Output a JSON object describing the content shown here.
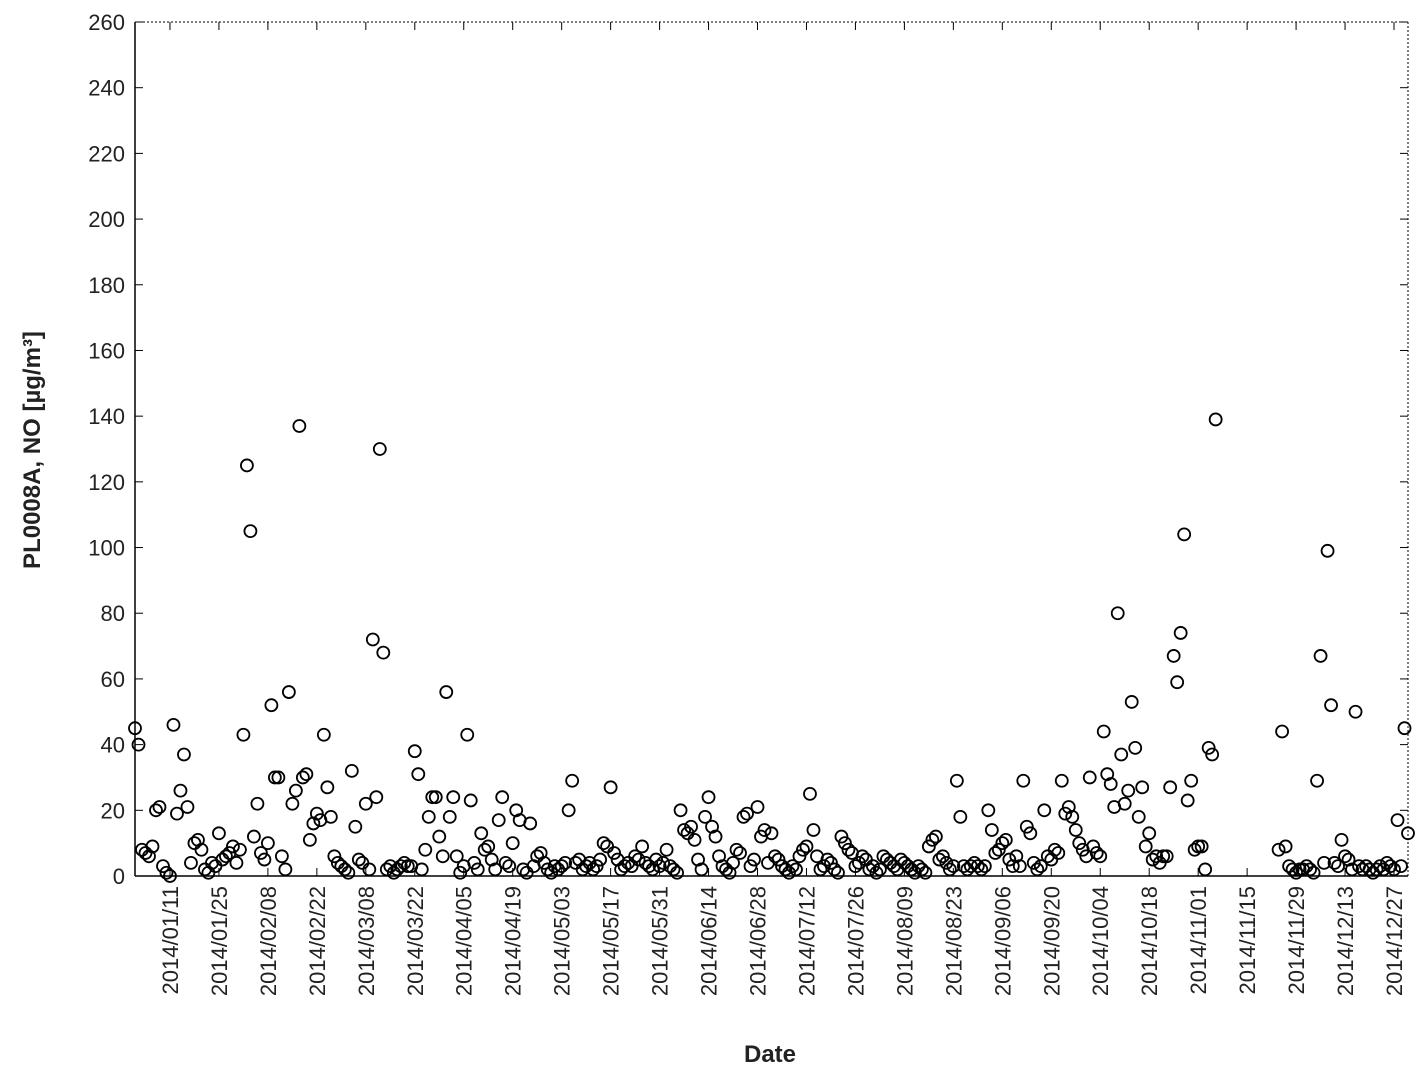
{
  "chart_data": {
    "type": "scatter",
    "xlabel": "Date",
    "ylabel": "PL0008A, NO [µg/m³]",
    "xlim": [
      "2014/01/01",
      "2014/12/31"
    ],
    "xticks": [
      "2014/01/11",
      "2014/01/25",
      "2014/02/08",
      "2014/02/22",
      "2014/03/08",
      "2014/03/22",
      "2014/04/05",
      "2014/04/19",
      "2014/05/03",
      "2014/05/17",
      "2014/05/31",
      "2014/06/14",
      "2014/06/28",
      "2014/07/12",
      "2014/07/26",
      "2014/08/09",
      "2014/08/23",
      "2014/09/06",
      "2014/09/20",
      "2014/10/04",
      "2014/10/18",
      "2014/11/01",
      "2014/11/15",
      "2014/11/29",
      "2014/12/13",
      "2014/12/27"
    ],
    "ylim": [
      0,
      260
    ],
    "yticks": [
      0,
      20,
      40,
      60,
      80,
      100,
      120,
      140,
      160,
      180,
      200,
      220,
      240,
      260
    ],
    "color": "#000000",
    "x": [
      "2014/01/01",
      "2014/01/02",
      "2014/01/03",
      "2014/01/04",
      "2014/01/05",
      "2014/01/06",
      "2014/01/07",
      "2014/01/08",
      "2014/01/09",
      "2014/01/10",
      "2014/01/11",
      "2014/01/12",
      "2014/01/13",
      "2014/01/14",
      "2014/01/15",
      "2014/01/16",
      "2014/01/17",
      "2014/01/18",
      "2014/01/19",
      "2014/01/20",
      "2014/01/21",
      "2014/01/22",
      "2014/01/23",
      "2014/01/24",
      "2014/01/25",
      "2014/01/26",
      "2014/01/27",
      "2014/01/28",
      "2014/01/29",
      "2014/01/30",
      "2014/01/31",
      "2014/02/01",
      "2014/02/02",
      "2014/02/03",
      "2014/02/04",
      "2014/02/05",
      "2014/02/06",
      "2014/02/07",
      "2014/02/08",
      "2014/02/09",
      "2014/02/10",
      "2014/02/11",
      "2014/02/12",
      "2014/02/13",
      "2014/02/14",
      "2014/02/15",
      "2014/02/16",
      "2014/02/17",
      "2014/02/18",
      "2014/02/19",
      "2014/02/20",
      "2014/02/21",
      "2014/02/22",
      "2014/02/23",
      "2014/02/24",
      "2014/02/25",
      "2014/02/26",
      "2014/02/27",
      "2014/02/28",
      "2014/03/01",
      "2014/03/02",
      "2014/03/03",
      "2014/03/04",
      "2014/03/05",
      "2014/03/06",
      "2014/03/07",
      "2014/03/08",
      "2014/03/09",
      "2014/03/10",
      "2014/03/11",
      "2014/03/12",
      "2014/03/13",
      "2014/03/14",
      "2014/03/15",
      "2014/03/16",
      "2014/03/17",
      "2014/03/18",
      "2014/03/19",
      "2014/03/20",
      "2014/03/21",
      "2014/03/22",
      "2014/03/23",
      "2014/03/24",
      "2014/03/25",
      "2014/03/26",
      "2014/03/27",
      "2014/03/28",
      "2014/03/29",
      "2014/03/30",
      "2014/03/31",
      "2014/04/01",
      "2014/04/02",
      "2014/04/03",
      "2014/04/04",
      "2014/04/05",
      "2014/04/06",
      "2014/04/07",
      "2014/04/08",
      "2014/04/09",
      "2014/04/10",
      "2014/04/11",
      "2014/04/12",
      "2014/04/13",
      "2014/04/14",
      "2014/04/15",
      "2014/04/16",
      "2014/04/17",
      "2014/04/18",
      "2014/04/19",
      "2014/04/20",
      "2014/04/21",
      "2014/04/22",
      "2014/04/23",
      "2014/04/24",
      "2014/04/25",
      "2014/04/26",
      "2014/04/27",
      "2014/04/28",
      "2014/04/29",
      "2014/04/30",
      "2014/05/01",
      "2014/05/02",
      "2014/05/03",
      "2014/05/04",
      "2014/05/05",
      "2014/05/06",
      "2014/05/07",
      "2014/05/08",
      "2014/05/09",
      "2014/05/10",
      "2014/05/11",
      "2014/05/12",
      "2014/05/13",
      "2014/05/14",
      "2014/05/15",
      "2014/05/16",
      "2014/05/17",
      "2014/05/18",
      "2014/05/19",
      "2014/05/20",
      "2014/05/21",
      "2014/05/22",
      "2014/05/23",
      "2014/05/24",
      "2014/05/25",
      "2014/05/26",
      "2014/05/27",
      "2014/05/28",
      "2014/05/29",
      "2014/05/30",
      "2014/05/31",
      "2014/06/01",
      "2014/06/02",
      "2014/06/03",
      "2014/06/04",
      "2014/06/05",
      "2014/06/06",
      "2014/06/07",
      "2014/06/08",
      "2014/06/09",
      "2014/06/10",
      "2014/06/11",
      "2014/06/12",
      "2014/06/13",
      "2014/06/14",
      "2014/06/15",
      "2014/06/16",
      "2014/06/17",
      "2014/06/18",
      "2014/06/19",
      "2014/06/20",
      "2014/06/21",
      "2014/06/22",
      "2014/06/23",
      "2014/06/24",
      "2014/06/25",
      "2014/06/26",
      "2014/06/27",
      "2014/06/28",
      "2014/06/29",
      "2014/06/30",
      "2014/07/01",
      "2014/07/02",
      "2014/07/03",
      "2014/07/04",
      "2014/07/05",
      "2014/07/06",
      "2014/07/07",
      "2014/07/08",
      "2014/07/09",
      "2014/07/10",
      "2014/07/11",
      "2014/07/12",
      "2014/07/13",
      "2014/07/14",
      "2014/07/15",
      "2014/07/16",
      "2014/07/17",
      "2014/07/18",
      "2014/07/19",
      "2014/07/20",
      "2014/07/21",
      "2014/07/22",
      "2014/07/23",
      "2014/07/24",
      "2014/07/25",
      "2014/07/26",
      "2014/07/27",
      "2014/07/28",
      "2014/07/29",
      "2014/07/30",
      "2014/07/31",
      "2014/08/01",
      "2014/08/02",
      "2014/08/03",
      "2014/08/04",
      "2014/08/05",
      "2014/08/06",
      "2014/08/07",
      "2014/08/08",
      "2014/08/09",
      "2014/08/10",
      "2014/08/11",
      "2014/08/12",
      "2014/08/13",
      "2014/08/14",
      "2014/08/15",
      "2014/08/16",
      "2014/08/17",
      "2014/08/18",
      "2014/08/19",
      "2014/08/20",
      "2014/08/21",
      "2014/08/22",
      "2014/08/23",
      "2014/08/24",
      "2014/08/25",
      "2014/08/26",
      "2014/08/27",
      "2014/08/28",
      "2014/08/29",
      "2014/08/30",
      "2014/08/31",
      "2014/09/01",
      "2014/09/02",
      "2014/09/03",
      "2014/09/04",
      "2014/09/05",
      "2014/09/06",
      "2014/09/07",
      "2014/09/08",
      "2014/09/09",
      "2014/09/10",
      "2014/09/11",
      "2014/09/12",
      "2014/09/13",
      "2014/09/14",
      "2014/09/15",
      "2014/09/16",
      "2014/09/17",
      "2014/09/18",
      "2014/09/19",
      "2014/09/20",
      "2014/09/21",
      "2014/09/22",
      "2014/09/23",
      "2014/09/24",
      "2014/09/25",
      "2014/09/26",
      "2014/09/27",
      "2014/09/28",
      "2014/09/29",
      "2014/09/30",
      "2014/10/01",
      "2014/10/02",
      "2014/10/03",
      "2014/10/04",
      "2014/10/05",
      "2014/10/06",
      "2014/10/07",
      "2014/10/08",
      "2014/10/09",
      "2014/10/10",
      "2014/10/11",
      "2014/10/12",
      "2014/10/13",
      "2014/10/14",
      "2014/10/15",
      "2014/10/16",
      "2014/10/17",
      "2014/10/18",
      "2014/10/19",
      "2014/10/20",
      "2014/10/21",
      "2014/10/22",
      "2014/10/23",
      "2014/10/24",
      "2014/10/25",
      "2014/10/26",
      "2014/10/27",
      "2014/10/28",
      "2014/10/29",
      "2014/10/30",
      "2014/10/31",
      "2014/11/01",
      "2014/11/02",
      "2014/11/03",
      "2014/11/04",
      "2014/11/05",
      "2014/11/06",
      "2014/11/24",
      "2014/11/25",
      "2014/11/26",
      "2014/11/27",
      "2014/11/28",
      "2014/11/29",
      "2014/11/30",
      "2014/12/01",
      "2014/12/02",
      "2014/12/03",
      "2014/12/04",
      "2014/12/05",
      "2014/12/06",
      "2014/12/07",
      "2014/12/08",
      "2014/12/09",
      "2014/12/10",
      "2014/12/11",
      "2014/12/12",
      "2014/12/13",
      "2014/12/14",
      "2014/12/15",
      "2014/12/16",
      "2014/12/17",
      "2014/12/18",
      "2014/12/19",
      "2014/12/20",
      "2014/12/21",
      "2014/12/22",
      "2014/12/23",
      "2014/12/24",
      "2014/12/25",
      "2014/12/26",
      "2014/12/27",
      "2014/12/28",
      "2014/12/29",
      "2014/12/30",
      "2014/12/31"
    ],
    "values": [
      45,
      40,
      8,
      7,
      6,
      9,
      20,
      21,
      3,
      1,
      0,
      46,
      19,
      26,
      37,
      21,
      4,
      10,
      11,
      8,
      2,
      1,
      4,
      3,
      13,
      5,
      6,
      7,
      9,
      4,
      8,
      43,
      125,
      105,
      12,
      22,
      7,
      5,
      10,
      52,
      30,
      30,
      6,
      2,
      56,
      22,
      26,
      137,
      30,
      31,
      11,
      16,
      19,
      17,
      43,
      27,
      18,
      6,
      4,
      3,
      2,
      1,
      32,
      15,
      5,
      4,
      22,
      2,
      72,
      24,
      130,
      68,
      2,
      3,
      1,
      2,
      3,
      4,
      3,
      3,
      38,
      31,
      2,
      8,
      18,
      24,
      24,
      12,
      6,
      56,
      18,
      24,
      6,
      1,
      3,
      43,
      23,
      4,
      2,
      13,
      8,
      9,
      5,
      2,
      17,
      24,
      4,
      3,
      10,
      20,
      17,
      2,
      1,
      16,
      3,
      6,
      7,
      4,
      2,
      1,
      3,
      2,
      3,
      4,
      20,
      29,
      4,
      5,
      2,
      3,
      4,
      2,
      3,
      5,
      10,
      9,
      27,
      7,
      5,
      2,
      3,
      4,
      3,
      6,
      5,
      9,
      4,
      3,
      2,
      5,
      3,
      4,
      8,
      3,
      2,
      1,
      20,
      14,
      13,
      15,
      11,
      5,
      2,
      18,
      24,
      15,
      12,
      6,
      3,
      2,
      1,
      4,
      8,
      7,
      18,
      19,
      3,
      5,
      21,
      12,
      14,
      4,
      13,
      6,
      5,
      3,
      2,
      1,
      3,
      2,
      6,
      8,
      9,
      25,
      14,
      6,
      2,
      3,
      5,
      4,
      2,
      1,
      12,
      10,
      8,
      7,
      3,
      4,
      6,
      5,
      2,
      3,
      1,
      2,
      6,
      5,
      4,
      3,
      2,
      5,
      4,
      3,
      2,
      1,
      3,
      2,
      1,
      9,
      11,
      12,
      5,
      6,
      4,
      2,
      3,
      29,
      18,
      3,
      2,
      3,
      4,
      3,
      2,
      3,
      20,
      14,
      7,
      8,
      10,
      11,
      5,
      3,
      6,
      3,
      29,
      15,
      13,
      4,
      2,
      3,
      20,
      6,
      5,
      8,
      7,
      29,
      19,
      21,
      18,
      14,
      10,
      8,
      6,
      30,
      9,
      7,
      6,
      44,
      31,
      28,
      21,
      80,
      37,
      22,
      26,
      53,
      39,
      18,
      27,
      9,
      13,
      5,
      6,
      4,
      6,
      6,
      27,
      67,
      59,
      74,
      104,
      23,
      29,
      8,
      9,
      9,
      2,
      39,
      37,
      139,
      8,
      44,
      9,
      3,
      2,
      1,
      2,
      2,
      3,
      2,
      1,
      29,
      67,
      4,
      99,
      52,
      4,
      3,
      11,
      6,
      5,
      2,
      50,
      3,
      2,
      3,
      2,
      1,
      2,
      3,
      2,
      4,
      3,
      2,
      17,
      3,
      45,
      13
    ]
  }
}
